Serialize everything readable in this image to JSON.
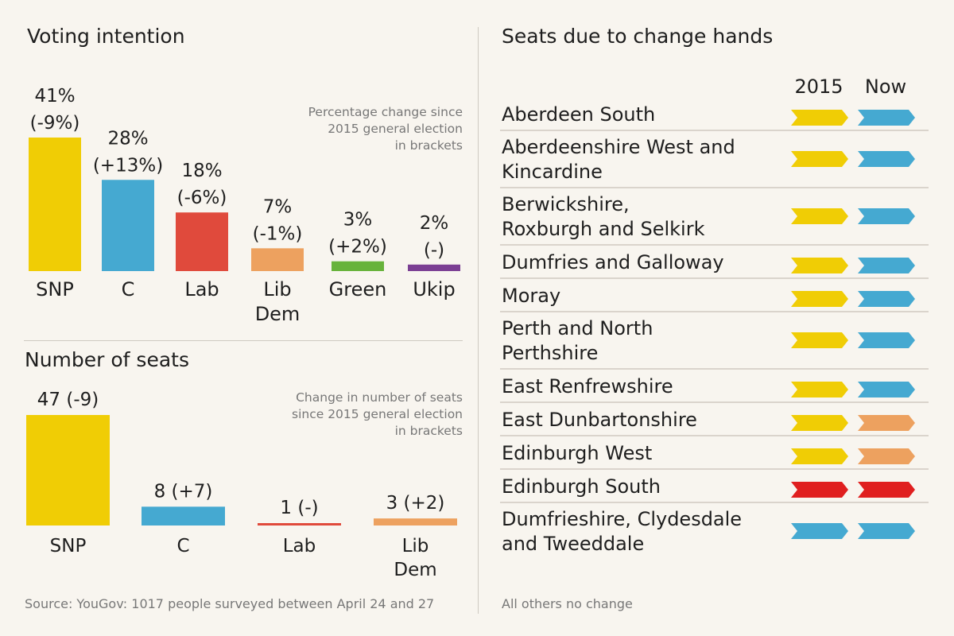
{
  "voting": {
    "title": "Voting intention",
    "note": [
      "Percentage change since",
      "2015 general election",
      "in brackets"
    ],
    "chart_data": {
      "type": "bar",
      "categories": [
        [
          "SNP"
        ],
        [
          "C"
        ],
        [
          "Lab"
        ],
        [
          "Lib",
          "Dem"
        ],
        [
          "Green"
        ],
        [
          "Ukip"
        ]
      ],
      "values": [
        41,
        28,
        18,
        7,
        3,
        2
      ],
      "value_labels": [
        "41%",
        "28%",
        "18%",
        "7%",
        "3%",
        "2%"
      ],
      "change_labels": [
        "(-9%)",
        "(+13%)",
        "(-6%)",
        "(-1%)",
        "(+2%)",
        "(-)"
      ],
      "colors": [
        "#f0cd05",
        "#45a9d1",
        "#e04a3c",
        "#eda15f",
        "#67b33b",
        "#7b3f93"
      ],
      "ylim": [
        0,
        41
      ]
    }
  },
  "seats": {
    "title": "Number of seats",
    "note": [
      "Change in number of seats",
      "since 2015 general election",
      "in brackets"
    ],
    "chart_data": {
      "type": "bar",
      "categories": [
        [
          "SNP"
        ],
        [
          "C"
        ],
        [
          "Lab"
        ],
        [
          "Lib",
          "Dem"
        ]
      ],
      "values": [
        47,
        8,
        1,
        3
      ],
      "value_labels": [
        "47",
        "8",
        "1",
        "3"
      ],
      "change_labels": [
        "(-9)",
        "(+7)",
        "(-)",
        "(+2)"
      ],
      "colors": [
        "#f0cd05",
        "#45a9d1",
        "#e04a3c",
        "#eda15f"
      ],
      "ylim": [
        0,
        47
      ]
    }
  },
  "source": "Source: YouGov: 1017 people surveyed between April 24 and 27",
  "change": {
    "title": "Seats due to change hands",
    "col_2015": "2015",
    "col_now": "Now",
    "footnote": "All others no change",
    "party_colors": {
      "SNP": "#f0cd05",
      "C": "#45a9d1",
      "LibDem": "#eda15f",
      "Lab": "#e01f1f"
    },
    "chart_data": {
      "type": "table",
      "rows": [
        {
          "lines": [
            "Aberdeen South"
          ],
          "from": "SNP",
          "to": "C"
        },
        {
          "lines": [
            "Aberdeenshire West  and",
            "Kincardine"
          ],
          "from": "SNP",
          "to": "C"
        },
        {
          "lines": [
            "Berwickshire,",
            "Roxburgh and Selkirk"
          ],
          "from": "SNP",
          "to": "C"
        },
        {
          "lines": [
            "Dumfries and Galloway"
          ],
          "from": "SNP",
          "to": "C"
        },
        {
          "lines": [
            "Moray"
          ],
          "from": "SNP",
          "to": "C"
        },
        {
          "lines": [
            "Perth and North",
            "Perthshire"
          ],
          "from": "SNP",
          "to": "C"
        },
        {
          "lines": [
            "East Renfrewshire"
          ],
          "from": "SNP",
          "to": "C"
        },
        {
          "lines": [
            "East Dunbartonshire"
          ],
          "from": "SNP",
          "to": "LibDem"
        },
        {
          "lines": [
            "Edinburgh West"
          ],
          "from": "SNP",
          "to": "LibDem"
        },
        {
          "lines": [
            "Edinburgh South"
          ],
          "from": "Lab",
          "to": "Lab"
        },
        {
          "lines": [
            "Dumfrieshire, Clydesdale",
            "and Tweeddale"
          ],
          "from": "C",
          "to": "C"
        }
      ]
    }
  }
}
